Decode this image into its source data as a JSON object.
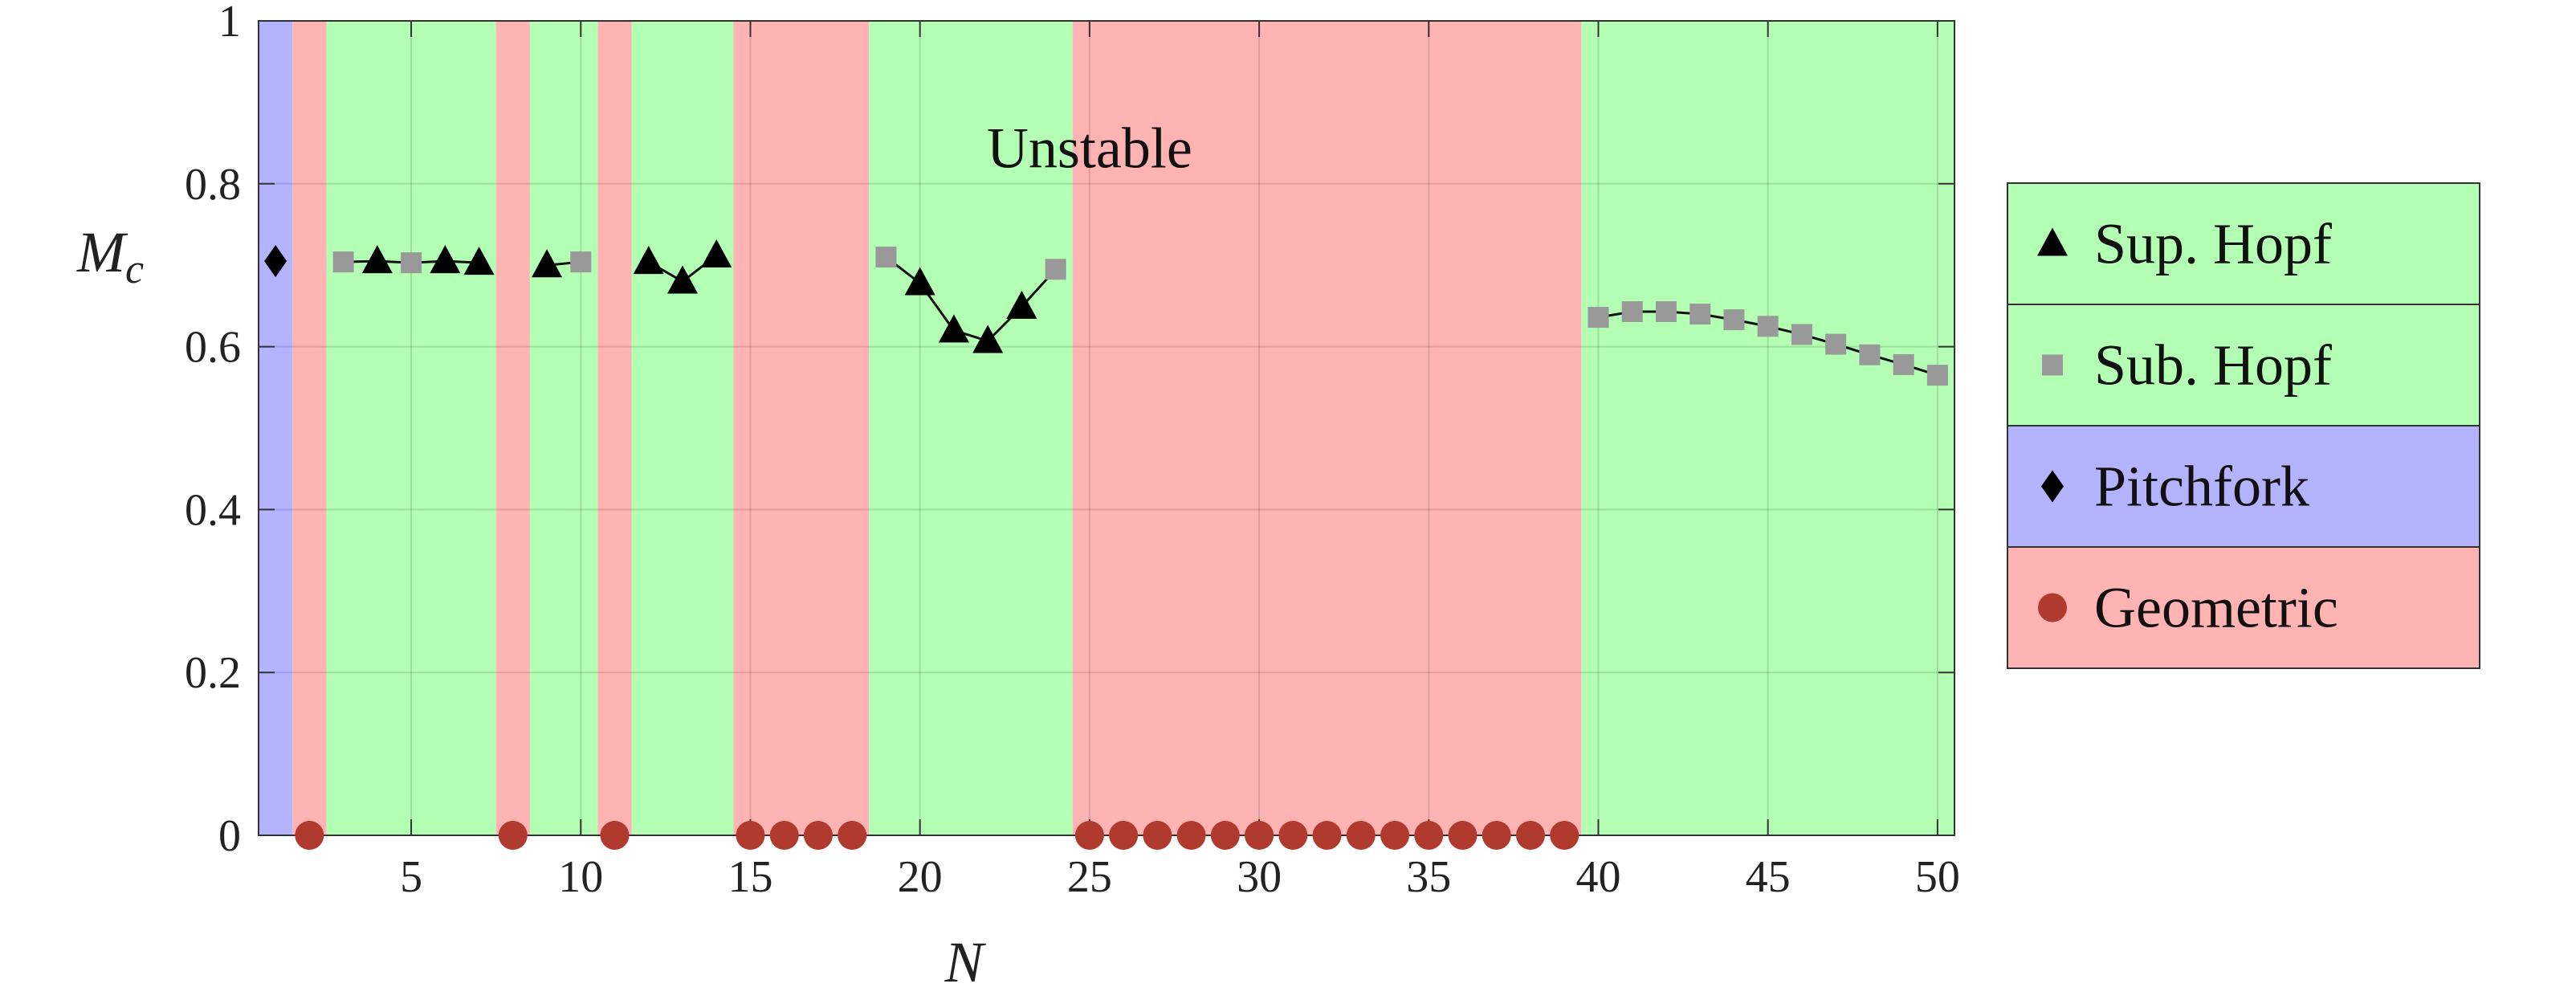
{
  "chart_data": {
    "type": "scatter",
    "xlabel": "N",
    "ylabel": "M",
    "ylabel_subscript": "c",
    "xlim": [
      0.5,
      50.5
    ],
    "ylim": [
      0,
      1
    ],
    "xticks": [
      5,
      10,
      15,
      20,
      25,
      30,
      35,
      40,
      45,
      50
    ],
    "yticks": [
      0,
      0.2,
      0.4,
      0.6,
      0.8,
      1
    ],
    "ytick_labels": [
      "0",
      "0.2",
      "0.4",
      "0.6",
      "0.8",
      "1"
    ],
    "grid": true,
    "annotation": "Unstable",
    "legend_placement": "right",
    "colors": {
      "green_region": "#b3ffb3",
      "red_region": "#ffb3b3",
      "blue_region": "#b3b3ff",
      "sup_hopf": "#000000",
      "sub_hopf": "#999999",
      "pitchfork": "#000000",
      "geometric": "#b03a2e"
    },
    "regions": [
      {
        "type": "Pitchfork",
        "from": 0.5,
        "to": 1.5
      },
      {
        "type": "Geometric",
        "from": 1.5,
        "to": 2.5
      },
      {
        "type": "Hopf",
        "from": 2.5,
        "to": 7.5
      },
      {
        "type": "Geometric",
        "from": 7.5,
        "to": 8.5
      },
      {
        "type": "Hopf",
        "from": 8.5,
        "to": 10.5
      },
      {
        "type": "Geometric",
        "from": 10.5,
        "to": 11.5
      },
      {
        "type": "Hopf",
        "from": 11.5,
        "to": 14.5
      },
      {
        "type": "Geometric",
        "from": 14.5,
        "to": 18.5
      },
      {
        "type": "Hopf",
        "from": 18.5,
        "to": 24.5
      },
      {
        "type": "Geometric",
        "from": 24.5,
        "to": 39.5
      },
      {
        "type": "Hopf",
        "from": 39.5,
        "to": 50.5
      }
    ],
    "series": [
      {
        "name": "Sup. Hopf",
        "marker": "triangle",
        "points": [
          [
            4,
            0.705
          ],
          [
            6,
            0.705
          ],
          [
            7,
            0.703
          ],
          [
            9,
            0.7
          ],
          [
            12,
            0.704
          ],
          [
            13,
            0.68
          ],
          [
            14,
            0.712
          ],
          [
            20,
            0.678
          ],
          [
            21,
            0.62
          ],
          [
            22,
            0.607
          ],
          [
            23,
            0.649
          ]
        ]
      },
      {
        "name": "Sub. Hopf",
        "marker": "square",
        "points": [
          [
            3,
            0.704
          ],
          [
            5,
            0.703
          ],
          [
            10,
            0.704
          ],
          [
            19,
            0.71
          ],
          [
            24,
            0.695
          ],
          [
            40,
            0.636
          ],
          [
            41,
            0.643
          ],
          [
            42,
            0.643
          ],
          [
            43,
            0.64
          ],
          [
            44,
            0.633
          ],
          [
            45,
            0.625
          ],
          [
            46,
            0.615
          ],
          [
            47,
            0.603
          ],
          [
            48,
            0.59
          ],
          [
            49,
            0.578
          ],
          [
            50,
            0.565
          ]
        ]
      },
      {
        "name": "Pitchfork",
        "marker": "diamond",
        "points": [
          [
            1,
            0.705
          ]
        ]
      },
      {
        "name": "Geometric",
        "marker": "circle",
        "points": [
          [
            2,
            0
          ],
          [
            8,
            0
          ],
          [
            11,
            0
          ],
          [
            15,
            0
          ],
          [
            16,
            0
          ],
          [
            17,
            0
          ],
          [
            18,
            0
          ],
          [
            25,
            0
          ],
          [
            26,
            0
          ],
          [
            27,
            0
          ],
          [
            28,
            0
          ],
          [
            29,
            0
          ],
          [
            30,
            0
          ],
          [
            31,
            0
          ],
          [
            32,
            0
          ],
          [
            33,
            0
          ],
          [
            34,
            0
          ],
          [
            35,
            0
          ],
          [
            36,
            0
          ],
          [
            37,
            0
          ],
          [
            38,
            0
          ],
          [
            39,
            0
          ]
        ]
      }
    ],
    "connected_segments": [
      [
        3,
        7
      ],
      [
        9,
        10
      ],
      [
        12,
        14
      ],
      [
        19,
        24
      ],
      [
        40,
        50
      ]
    ]
  }
}
